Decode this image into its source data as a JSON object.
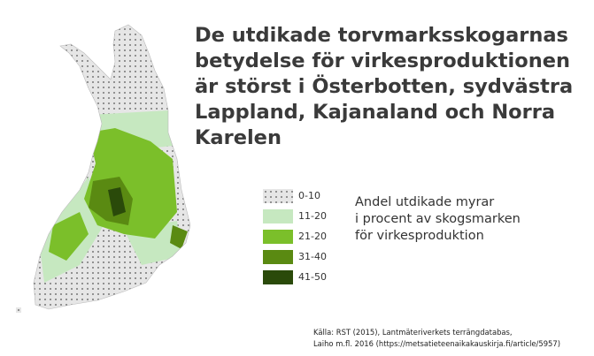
{
  "title": "De utdikade torvmarksskogarnas betydelse för virkesproduktionen är störst i Österbotten, sydvästra Lappland, Kajanaland och Norra Karelen",
  "legend": {
    "caption_lines": [
      "Andel utdikade myrar",
      "i procent av skogsmarken",
      "för virkesproduktion"
    ],
    "classes": [
      {
        "label": "0-10",
        "color": "#e6e6e6",
        "pattern": "dots"
      },
      {
        "label": "11-20",
        "color": "#c6e8c0"
      },
      {
        "label": "21-20",
        "color": "#7bbf2a"
      },
      {
        "label": "31-40",
        "color": "#5a8a12"
      },
      {
        "label": "41-50",
        "color": "#2a4a0a"
      }
    ]
  },
  "source_lines": [
    "Källa: RST (2015), Lantmäteriverkets terrängdatabas,",
    "Laiho m.fl. 2016 (https://metsatieteenaikakauskirja.fi/article/5957)"
  ]
}
